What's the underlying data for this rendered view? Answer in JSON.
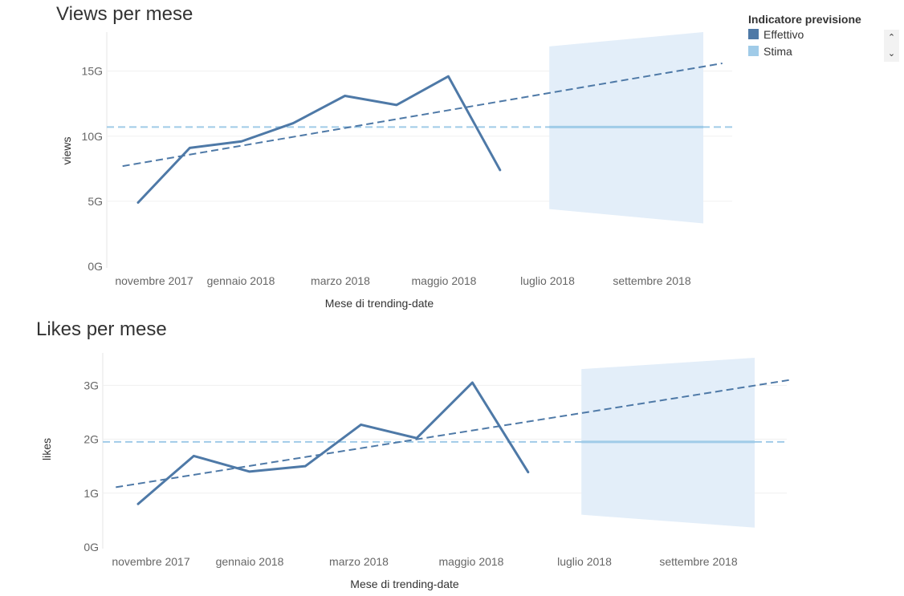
{
  "colors": {
    "actual": "#4e79a7",
    "estimate": "#a0cbe8",
    "band": "#e3eef9"
  },
  "legend": {
    "title": "Indicatore previsione",
    "items": [
      {
        "label": "Effettivo",
        "color": "#4e79a7"
      },
      {
        "label": "Stima",
        "color": "#a0cbe8"
      }
    ]
  },
  "chart_data": [
    {
      "type": "line",
      "title": "Views per mese",
      "xlabel": "Mese di trending-date",
      "ylabel": "views",
      "x_ticks": [
        "novembre 2017",
        "gennaio 2018",
        "marzo 2018",
        "maggio 2018",
        "luglio 2018",
        "settembre 2018"
      ],
      "y_ticks": [
        "0G",
        "5G",
        "10G",
        "15G"
      ],
      "y_tick_values": [
        0,
        5,
        10,
        15
      ],
      "ylim": [
        0,
        18
      ],
      "xlim": [
        -0.3,
        11.3
      ],
      "series": [
        {
          "name": "Effettivo",
          "x": [
            0,
            1,
            2,
            3,
            4,
            5,
            6,
            7
          ],
          "values": [
            4.9,
            9.1,
            9.6,
            11.0,
            13.1,
            12.4,
            14.6,
            7.4
          ]
        }
      ],
      "trend": {
        "x": [
          -0.3,
          11.3
        ],
        "values": [
          7.7,
          15.6
        ]
      },
      "average": 10.7,
      "forecast": {
        "x": [
          8,
          9,
          10,
          11
        ],
        "values": [
          10.7,
          10.7,
          10.7,
          10.7
        ],
        "upper": [
          16.9,
          17.3,
          17.6,
          18.0
        ],
        "lower": [
          4.4,
          4.0,
          3.6,
          3.3
        ]
      }
    },
    {
      "type": "line",
      "title": "Likes per mese",
      "xlabel": "Mese di trending-date",
      "ylabel": "likes",
      "x_ticks": [
        "novembre 2017",
        "gennaio 2018",
        "marzo 2018",
        "maggio 2018",
        "luglio 2018",
        "settembre 2018"
      ],
      "y_ticks": [
        "0G",
        "1G",
        "2G",
        "3G"
      ],
      "y_tick_values": [
        0,
        1,
        2,
        3
      ],
      "ylim": [
        0,
        3.6
      ],
      "xlim": [
        -0.4,
        11.7
      ],
      "series": [
        {
          "name": "Effettivo",
          "x": [
            0,
            1,
            2,
            3,
            4,
            5,
            6,
            7
          ],
          "values": [
            0.8,
            1.69,
            1.4,
            1.5,
            2.27,
            2.02,
            3.05,
            1.39
          ]
        }
      ],
      "trend": {
        "x": [
          -0.4,
          11.7
        ],
        "values": [
          1.11,
          3.1
        ]
      },
      "average": 1.95,
      "forecast": {
        "x": [
          8,
          9,
          10,
          11
        ],
        "values": [
          1.95,
          1.95,
          1.95,
          1.95
        ],
        "upper": [
          3.3,
          3.37,
          3.44,
          3.51
        ],
        "lower": [
          0.6,
          0.52,
          0.44,
          0.36
        ]
      }
    }
  ]
}
